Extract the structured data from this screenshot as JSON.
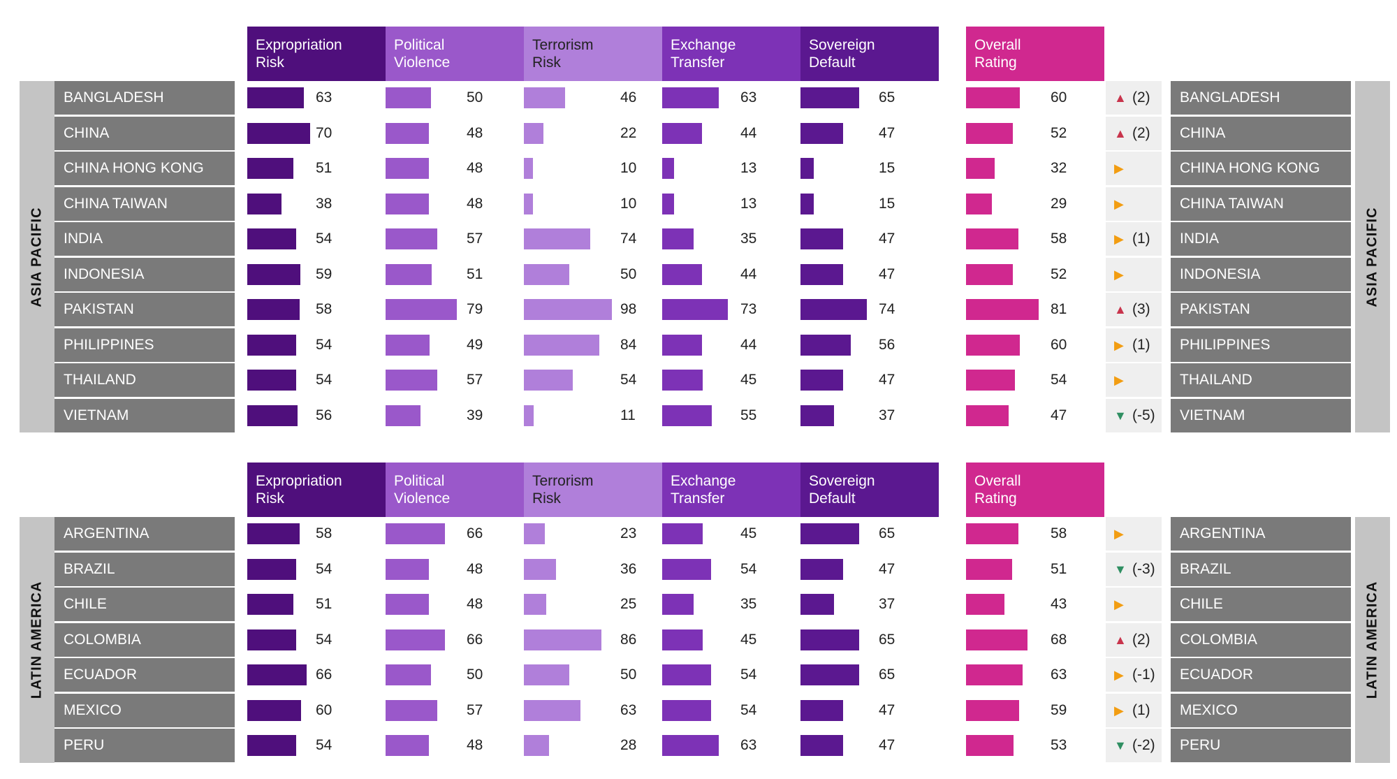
{
  "chart_data": {
    "type": "bar",
    "xlim": [
      0,
      100
    ],
    "columns": [
      {
        "key": "expropriation",
        "label": [
          "Expropriation",
          "Risk"
        ],
        "color": "#4f0f7c"
      },
      {
        "key": "political",
        "label": [
          "Political",
          "Violence"
        ],
        "color": "#9a58ca"
      },
      {
        "key": "terrorism",
        "label": [
          "Terrorism",
          "Risk"
        ],
        "color": "#b07fda"
      },
      {
        "key": "exchange",
        "label": [
          "Exchange",
          "Transfer"
        ],
        "color": "#7d32b6"
      },
      {
        "key": "sovereign",
        "label": [
          "Sovereign",
          "Default"
        ],
        "color": "#5b1890"
      },
      {
        "key": "overall",
        "label": [
          "Overall",
          "Rating"
        ],
        "color": "#d0288f"
      }
    ],
    "colors": {
      "up": "#c8344c",
      "down": "#2f8f62",
      "same": "#f29d12"
    },
    "regions": [
      {
        "name": "ASIA PACIFIC",
        "rows": [
          {
            "country": "BANGLADESH",
            "values": [
              63,
              50,
              46,
              63,
              65,
              60
            ],
            "trend": "up",
            "change": "(2)"
          },
          {
            "country": "CHINA",
            "values": [
              70,
              48,
              22,
              44,
              47,
              52
            ],
            "trend": "up",
            "change": "(2)"
          },
          {
            "country": "CHINA HONG KONG",
            "values": [
              51,
              48,
              10,
              13,
              15,
              32
            ],
            "trend": "same",
            "change": ""
          },
          {
            "country": "CHINA TAIWAN",
            "values": [
              38,
              48,
              10,
              13,
              15,
              29
            ],
            "trend": "same",
            "change": ""
          },
          {
            "country": "INDIA",
            "values": [
              54,
              57,
              74,
              35,
              47,
              58
            ],
            "trend": "same",
            "change": "(1)"
          },
          {
            "country": "INDONESIA",
            "values": [
              59,
              51,
              50,
              44,
              47,
              52
            ],
            "trend": "same",
            "change": ""
          },
          {
            "country": "PAKISTAN",
            "values": [
              58,
              79,
              98,
              73,
              74,
              81
            ],
            "trend": "up",
            "change": "(3)"
          },
          {
            "country": "PHILIPPINES",
            "values": [
              54,
              49,
              84,
              44,
              56,
              60
            ],
            "trend": "same",
            "change": "(1)"
          },
          {
            "country": "THAILAND",
            "values": [
              54,
              57,
              54,
              45,
              47,
              54
            ],
            "trend": "same",
            "change": ""
          },
          {
            "country": "VIETNAM",
            "values": [
              56,
              39,
              11,
              55,
              37,
              47
            ],
            "trend": "down",
            "change": "(-5)"
          }
        ]
      },
      {
        "name": "LATIN AMERICA",
        "rows": [
          {
            "country": "ARGENTINA",
            "values": [
              58,
              66,
              23,
              45,
              65,
              58
            ],
            "trend": "same",
            "change": ""
          },
          {
            "country": "BRAZIL",
            "values": [
              54,
              48,
              36,
              54,
              47,
              51
            ],
            "trend": "down",
            "change": "(-3)"
          },
          {
            "country": "CHILE",
            "values": [
              51,
              48,
              25,
              35,
              37,
              43
            ],
            "trend": "same",
            "change": ""
          },
          {
            "country": "COLOMBIA",
            "values": [
              54,
              66,
              86,
              45,
              65,
              68
            ],
            "trend": "up",
            "change": "(2)"
          },
          {
            "country": "ECUADOR",
            "values": [
              66,
              50,
              50,
              54,
              65,
              63
            ],
            "trend": "same",
            "change": "(-1)"
          },
          {
            "country": "MEXICO",
            "values": [
              60,
              57,
              63,
              54,
              47,
              59
            ],
            "trend": "same",
            "change": "(1)"
          },
          {
            "country": "PERU",
            "values": [
              54,
              48,
              28,
              63,
              47,
              53
            ],
            "trend": "down",
            "change": "(-2)"
          }
        ]
      }
    ]
  }
}
